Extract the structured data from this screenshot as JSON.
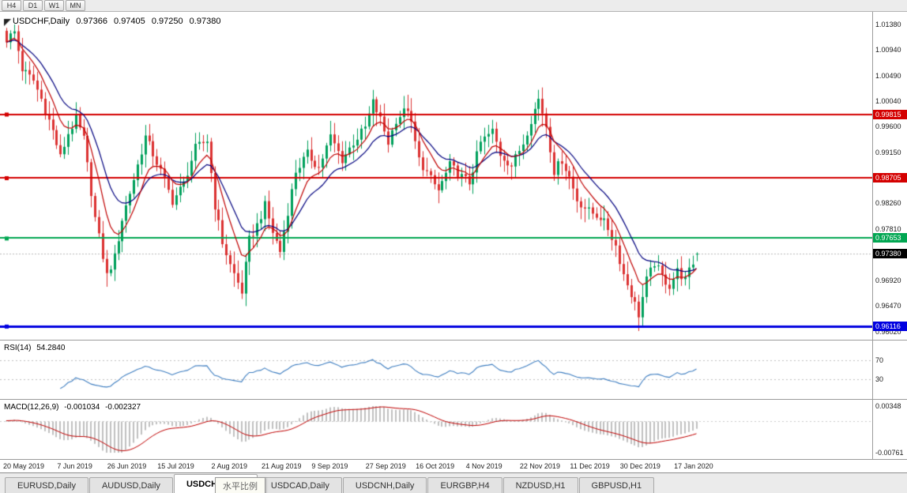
{
  "toolbar": {
    "timeframes": [
      {
        "label": "H4"
      },
      {
        "label": "D1"
      },
      {
        "label": "W1"
      },
      {
        "label": "MN"
      }
    ]
  },
  "main_chart": {
    "symbol_label": "USDCHF,Daily",
    "ohlc": {
      "open": "0.97366",
      "high": "0.97405",
      "low": "0.97250",
      "close": "0.97380"
    },
    "price_axis_labels": [
      "1.01380",
      "1.00940",
      "1.00490",
      "1.00040",
      "0.99600",
      "0.99150",
      "0.98260",
      "0.97810",
      "0.96920",
      "0.96470",
      "0.96020"
    ],
    "levels": [
      {
        "label": "0.99815",
        "value": 0.99815,
        "color": "#d40000",
        "width": 2,
        "type": "resistance"
      },
      {
        "label": "0.98705",
        "value": 0.98705,
        "color": "#d40000",
        "width": 2,
        "type": "resistance"
      },
      {
        "label": "0.97653",
        "value": 0.97653,
        "color": "#00a651",
        "width": 2,
        "type": "support"
      },
      {
        "label": "0.96116",
        "value": 0.96116,
        "color": "#0000e0",
        "width": 3,
        "type": "support"
      }
    ],
    "current_price": {
      "label": "0.97380",
      "value": 0.9738,
      "badge_color": "#000000"
    }
  },
  "rsi_panel": {
    "title": "RSI(14)",
    "value": "54.2840",
    "line_color": "#3e7ec1",
    "axis_labels": [
      {
        "label": "70",
        "value": 70
      },
      {
        "label": "30",
        "value": 30
      }
    ]
  },
  "macd_panel": {
    "title": "MACD(12,26,9)",
    "main_value": "-0.001034",
    "signal_value": "-0.002327",
    "axis_labels": [
      {
        "label": "0.00348",
        "value": 0.00348
      },
      {
        "label": "-0.00761",
        "value": -0.00761
      }
    ]
  },
  "date_axis": {
    "labels": [
      "20 May 2019",
      "7 Jun 2019",
      "26 Jun 2019",
      "15 Jul 2019",
      "2 Aug 2019",
      "21 Aug 2019",
      "9 Sep 2019",
      "27 Sep 2019",
      "16 Oct 2019",
      "4 Nov 2019",
      "22 Nov 2019",
      "11 Dec 2019",
      "30 Dec 2019",
      "17 Jan 2020"
    ],
    "tick_bars": [
      0,
      14,
      27,
      40,
      54,
      67,
      80,
      94,
      107,
      120,
      134,
      147,
      160,
      174
    ]
  },
  "tab_bar": {
    "tabs": [
      {
        "label": "EURUSD,Daily",
        "active": false
      },
      {
        "label": "AUDUSD,Daily",
        "active": false
      },
      {
        "label": "USDCHF,Daily",
        "active": true
      },
      {
        "label": "USDCAD,Daily",
        "active": false
      },
      {
        "label": "USDCNH,Daily",
        "active": false
      },
      {
        "label": "EURGBP,H4",
        "active": false
      },
      {
        "label": "NZDUSD,H1",
        "active": false
      },
      {
        "label": "GBPUSD,H1",
        "active": false
      }
    ],
    "tooltip": "水平比例"
  },
  "chart_data": {
    "type": "candlestick",
    "title": "USDCHF,Daily",
    "x_range": [
      "20 May 2019",
      "24 Jan 2020"
    ],
    "y_range": [
      0.9588,
      1.016
    ],
    "bars": 180,
    "bar_spacing_px": 4.88,
    "current_ohlc": {
      "open": 0.97366,
      "high": 0.97405,
      "low": 0.9725,
      "close": 0.9738
    },
    "close_path": [
      [
        0,
        1.0112
      ],
      [
        2,
        1.0125
      ],
      [
        4,
        1.006
      ],
      [
        7,
        1.004
      ],
      [
        9,
        1.0008
      ],
      [
        12,
        0.9952
      ],
      [
        14,
        0.9906
      ],
      [
        16,
        0.9948
      ],
      [
        18,
        0.9972
      ],
      [
        20,
        0.9938
      ],
      [
        23,
        0.98
      ],
      [
        26,
        0.97
      ],
      [
        28,
        0.9732
      ],
      [
        30,
        0.9798
      ],
      [
        33,
        0.9868
      ],
      [
        36,
        0.9942
      ],
      [
        38,
        0.9912
      ],
      [
        40,
        0.9882
      ],
      [
        43,
        0.983
      ],
      [
        46,
        0.986
      ],
      [
        49,
        0.9922
      ],
      [
        52,
        0.9936
      ],
      [
        54,
        0.9822
      ],
      [
        56,
        0.9758
      ],
      [
        58,
        0.9718
      ],
      [
        61,
        0.9672
      ],
      [
        63,
        0.9762
      ],
      [
        65,
        0.9788
      ],
      [
        67,
        0.9822
      ],
      [
        69,
        0.9776
      ],
      [
        71,
        0.9742
      ],
      [
        73,
        0.9812
      ],
      [
        75,
        0.9882
      ],
      [
        78,
        0.9912
      ],
      [
        81,
        0.9888
      ],
      [
        84,
        0.9942
      ],
      [
        87,
        0.9902
      ],
      [
        90,
        0.9932
      ],
      [
        93,
        0.9958
      ],
      [
        95,
        1.0002
      ],
      [
        97,
        0.9972
      ],
      [
        99,
        0.9932
      ],
      [
        101,
        0.9972
      ],
      [
        104,
        0.9992
      ],
      [
        107,
        0.9902
      ],
      [
        110,
        0.9868
      ],
      [
        112,
        0.9848
      ],
      [
        115,
        0.9892
      ],
      [
        118,
        0.9872
      ],
      [
        120,
        0.9862
      ],
      [
        123,
        0.9932
      ],
      [
        126,
        0.9952
      ],
      [
        128,
        0.9912
      ],
      [
        131,
        0.9892
      ],
      [
        134,
        0.9932
      ],
      [
        136,
        0.9972
      ],
      [
        138,
        1.0008
      ],
      [
        140,
        0.9962
      ],
      [
        142,
        0.9882
      ],
      [
        144,
        0.9902
      ],
      [
        146,
        0.9872
      ],
      [
        148,
        0.9832
      ],
      [
        151,
        0.9812
      ],
      [
        154,
        0.9802
      ],
      [
        156,
        0.9782
      ],
      [
        158,
        0.9752
      ],
      [
        160,
        0.9702
      ],
      [
        162,
        0.9668
      ],
      [
        164,
        0.9632
      ],
      [
        166,
        0.9692
      ],
      [
        168,
        0.9722
      ],
      [
        170,
        0.9698
      ],
      [
        172,
        0.9682
      ],
      [
        174,
        0.9708
      ],
      [
        176,
        0.9692
      ],
      [
        178,
        0.9722
      ],
      [
        179,
        0.9738
      ]
    ],
    "spike_highs": [
      [
        0,
        1.0132
      ],
      [
        2,
        1.0138
      ],
      [
        18,
        0.9999
      ],
      [
        95,
        1.0023
      ],
      [
        138,
        1.0024
      ]
    ],
    "spike_lows": [
      [
        26,
        0.9693
      ],
      [
        61,
        0.9659
      ],
      [
        164,
        0.9613
      ]
    ],
    "horizontal_levels": [
      0.99815,
      0.98705,
      0.97653,
      0.96116
    ],
    "colors": {
      "bull": "#00a05c",
      "bear": "#dc3232"
    },
    "indicators": {
      "ma_fast": {
        "type": "ema",
        "period": 8,
        "color": "#c00000"
      },
      "ma_slow": {
        "type": "ema",
        "period": 16,
        "color": "#00007f"
      },
      "rsi": {
        "period": 14,
        "current": 54.284,
        "levels": [
          70,
          30
        ]
      },
      "macd": {
        "fast": 12,
        "slow": 26,
        "signal": 9,
        "current_main": -0.001034,
        "current_signal": -0.002327,
        "y_range": [
          -0.00761,
          0.00348
        ],
        "histogram_color": "#c0c0c0",
        "signal_color": "#c00000"
      }
    }
  }
}
